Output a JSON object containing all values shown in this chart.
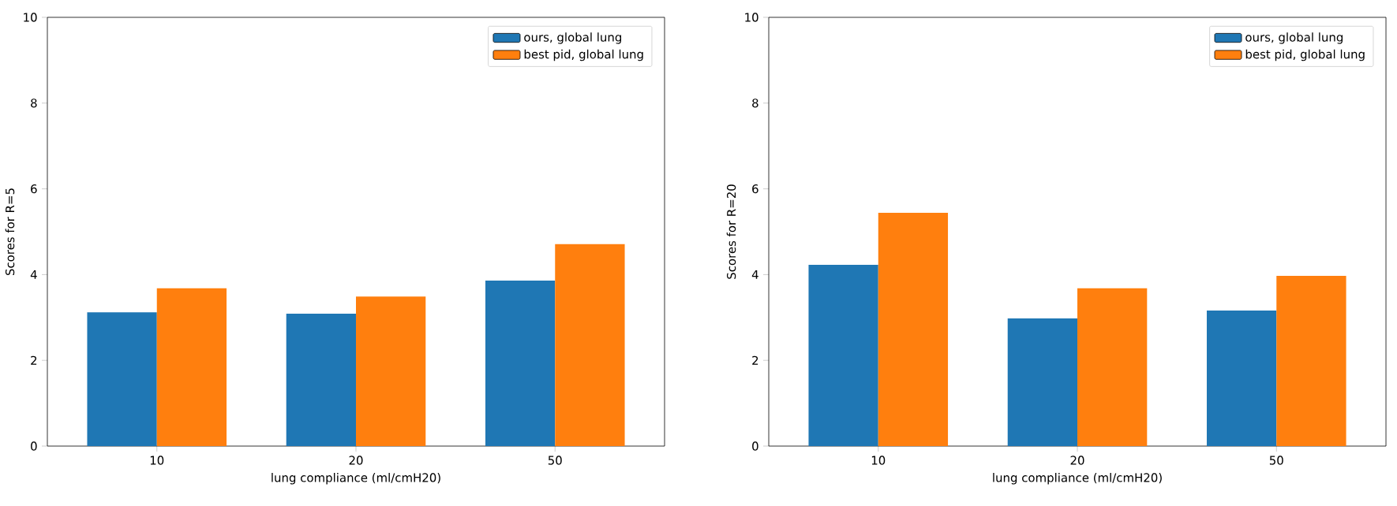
{
  "chart_data": [
    {
      "type": "bar",
      "categories": [
        "10",
        "20",
        "50"
      ],
      "xlabel": "lung compliance (ml/cmH20)",
      "ylabel": "Scores for R=5",
      "ylim": [
        0,
        10
      ],
      "yticks": [
        0,
        2,
        4,
        6,
        8,
        10
      ],
      "legend": "top right",
      "series": [
        {
          "name": "ours, global lung",
          "color": "#1f77b4",
          "values": [
            3.12,
            3.09,
            3.86
          ]
        },
        {
          "name": "best pid, global lung",
          "color": "#ff7f0e",
          "values": [
            3.68,
            3.49,
            4.71
          ]
        }
      ]
    },
    {
      "type": "bar",
      "categories": [
        "10",
        "20",
        "50"
      ],
      "xlabel": "lung compliance (ml/cmH20)",
      "ylabel": "Scores for R=20",
      "ylim": [
        0,
        10
      ],
      "yticks": [
        0,
        2,
        4,
        6,
        8,
        10
      ],
      "legend": "top right",
      "series": [
        {
          "name": "ours, global lung",
          "color": "#1f77b4",
          "values": [
            4.23,
            2.98,
            3.16
          ]
        },
        {
          "name": "best pid, global lung",
          "color": "#ff7f0e",
          "values": [
            5.44,
            3.68,
            3.97
          ]
        }
      ]
    }
  ]
}
